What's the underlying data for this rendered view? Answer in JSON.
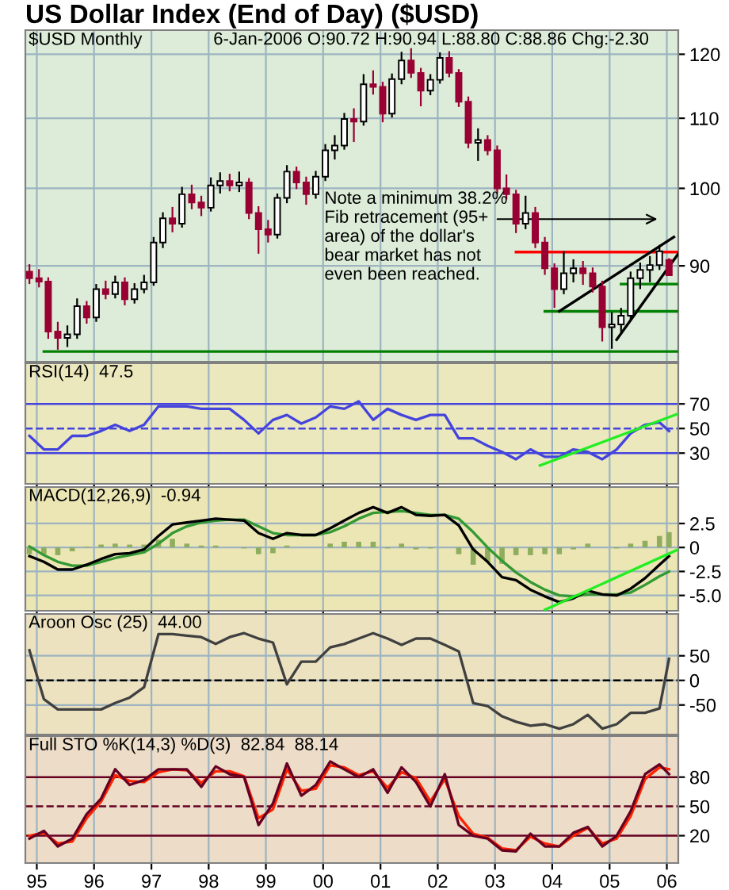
{
  "chart_data": [
    {
      "type": "candlestick",
      "title": "US Dollar Index (End of Day) ($USD)",
      "subtitle": "$USD Monthly",
      "annotations": [
        "6-Jan-2006 O:90.72 H:90.94 L:88.80 C:88.86 Chg:-2.30",
        "Note a minimum 38.2%\nFib retracement (95+\narea) of the dollar's\nbear market has not\neven been reached."
      ],
      "log": true,
      "grid": true,
      "tick_labels": "y",
      "xlim": [
        "1994-10-20",
        "2006-03-15"
      ],
      "xticks": [
        {
          "value": "1995-01-01",
          "label": null
        },
        {
          "value": "1996-01-01",
          "label": null
        },
        {
          "value": "1997-01-01",
          "label": null
        },
        {
          "value": "1998-01-01",
          "label": null
        },
        {
          "value": "1999-01-01",
          "label": null
        },
        {
          "value": "2000-01-01",
          "label": null
        },
        {
          "value": "2001-01-01",
          "label": null
        },
        {
          "value": "2002-01-01",
          "label": null
        },
        {
          "value": "2003-01-01",
          "label": null
        },
        {
          "value": "2004-01-01",
          "label": null
        },
        {
          "value": "2005-01-01",
          "label": null
        },
        {
          "value": "2006-01-01",
          "label": null
        }
      ],
      "ylim": [
        79,
        124
      ],
      "yticks": [
        90,
        100,
        110,
        120
      ],
      "x": [
        "1994-11",
        "1995-01",
        "1995-03",
        "1995-05",
        "1995-07",
        "1995-09",
        "1995-11",
        "1996-01",
        "1996-03",
        "1996-05",
        "1996-07",
        "1996-09",
        "1996-11",
        "1997-01",
        "1997-03",
        "1997-05",
        "1997-07",
        "1997-09",
        "1997-11",
        "1998-01",
        "1998-03",
        "1998-05",
        "1998-07",
        "1998-09",
        "1998-11",
        "1999-01",
        "1999-03",
        "1999-05",
        "1999-07",
        "1999-09",
        "1999-11",
        "2000-01",
        "2000-03",
        "2000-05",
        "2000-07",
        "2000-09",
        "2000-11",
        "2001-01",
        "2001-03",
        "2001-05",
        "2001-07",
        "2001-09",
        "2001-11",
        "2002-01",
        "2002-03",
        "2002-05",
        "2002-07",
        "2002-09",
        "2002-11",
        "2003-01",
        "2003-03",
        "2003-05",
        "2003-07",
        "2003-09",
        "2003-11",
        "2004-01",
        "2004-03",
        "2004-05",
        "2004-07",
        "2004-09",
        "2004-11",
        "2005-01",
        "2005-03",
        "2005-05",
        "2005-07",
        "2005-09",
        "2005-11",
        "2006-01"
      ],
      "ohlc": [
        [
          89.3,
          90.2,
          87.8,
          88.5
        ],
        [
          88.5,
          89.6,
          87.4,
          88.1
        ],
        [
          88.1,
          88.6,
          81.5,
          82.3
        ],
        [
          82.3,
          83.4,
          80.3,
          81.6
        ],
        [
          81.6,
          83.0,
          80.6,
          82.0
        ],
        [
          82.0,
          86.1,
          81.5,
          85.2
        ],
        [
          85.2,
          85.8,
          83.2,
          83.9
        ],
        [
          83.9,
          87.8,
          83.4,
          87.2
        ],
        [
          87.2,
          88.2,
          86.0,
          86.6
        ],
        [
          86.6,
          88.8,
          86.1,
          88.0
        ],
        [
          88.0,
          88.6,
          85.3,
          86.0
        ],
        [
          86.0,
          87.9,
          85.5,
          87.2
        ],
        [
          87.2,
          88.9,
          86.7,
          88.0
        ],
        [
          88.0,
          93.6,
          87.6,
          92.9
        ],
        [
          92.9,
          96.8,
          92.2,
          96.0
        ],
        [
          96.0,
          97.5,
          94.2,
          95.3
        ],
        [
          95.3,
          100.2,
          94.8,
          99.2
        ],
        [
          99.2,
          100.5,
          97.2,
          98.1
        ],
        [
          98.1,
          99.0,
          96.3,
          97.4
        ],
        [
          97.4,
          101.5,
          96.9,
          100.4
        ],
        [
          100.4,
          102.2,
          99.3,
          101.0
        ],
        [
          101.0,
          102.0,
          99.6,
          100.4
        ],
        [
          100.4,
          102.3,
          99.5,
          100.8
        ],
        [
          100.8,
          101.4,
          95.9,
          96.7
        ],
        [
          96.7,
          97.6,
          91.5,
          94.6
        ],
        [
          94.6,
          95.8,
          92.9,
          93.9
        ],
        [
          93.9,
          99.3,
          93.4,
          98.7
        ],
        [
          98.7,
          103.2,
          98.0,
          102.3
        ],
        [
          102.3,
          103.0,
          99.9,
          100.8
        ],
        [
          100.8,
          101.6,
          97.8,
          99.2
        ],
        [
          99.2,
          102.4,
          98.6,
          101.6
        ],
        [
          101.6,
          106.2,
          101.0,
          105.3
        ],
        [
          105.3,
          107.5,
          104.0,
          106.0
        ],
        [
          106.0,
          110.8,
          105.4,
          109.9
        ],
        [
          109.9,
          111.5,
          106.5,
          109.5
        ],
        [
          109.5,
          116.8,
          108.9,
          115.2
        ],
        [
          115.2,
          117.4,
          113.6,
          114.8
        ],
        [
          114.8,
          115.6,
          109.4,
          110.7
        ],
        [
          110.7,
          116.9,
          110.1,
          116.0
        ],
        [
          116.0,
          120.4,
          115.2,
          119.0
        ],
        [
          119.0,
          121.0,
          116.2,
          117.0
        ],
        [
          117.0,
          117.8,
          111.8,
          114.2
        ],
        [
          114.2,
          116.8,
          113.5,
          115.9
        ],
        [
          115.9,
          120.3,
          115.3,
          119.4
        ],
        [
          119.4,
          120.5,
          116.3,
          117.0
        ],
        [
          117.0,
          117.6,
          111.7,
          112.5
        ],
        [
          112.5,
          113.3,
          105.6,
          106.4
        ],
        [
          106.4,
          108.5,
          103.8,
          106.8
        ],
        [
          106.8,
          107.5,
          104.6,
          105.3
        ],
        [
          105.3,
          106.0,
          99.3,
          100.0
        ],
        [
          100.0,
          101.9,
          98.5,
          99.2
        ],
        [
          99.2,
          99.8,
          94.1,
          95.3
        ],
        [
          95.3,
          99.0,
          94.6,
          96.7
        ],
        [
          96.7,
          97.5,
          92.2,
          92.9
        ],
        [
          92.9,
          93.6,
          88.9,
          89.7
        ],
        [
          89.7,
          90.3,
          85.0,
          87.2
        ],
        [
          87.2,
          91.8,
          86.6,
          89.1
        ],
        [
          89.1,
          90.8,
          88.0,
          89.7
        ],
        [
          89.7,
          90.6,
          87.7,
          89.1
        ],
        [
          89.1,
          89.8,
          86.8,
          87.5
        ],
        [
          87.5,
          88.2,
          81.2,
          82.8
        ],
        [
          82.8,
          84.5,
          80.4,
          83.1
        ],
        [
          83.1,
          85.0,
          82.2,
          84.1
        ],
        [
          84.1,
          89.3,
          83.6,
          88.5
        ],
        [
          88.5,
          90.4,
          87.2,
          89.5
        ],
        [
          89.5,
          91.2,
          88.0,
          90.1
        ],
        [
          90.1,
          92.6,
          89.5,
          91.8
        ],
        [
          90.72,
          90.94,
          88.8,
          88.86
        ]
      ],
      "series": [
        {
          "type": "line",
          "color": "#008000",
          "x": [
            "1995-02",
            "2006-03"
          ],
          "values": [
            80.1,
            80.1
          ]
        },
        {
          "type": "line",
          "color": "#008000",
          "x": [
            "2003-11",
            "2006-03"
          ],
          "values": [
            84.6,
            84.6
          ]
        },
        {
          "type": "line",
          "color": "#008000",
          "x": [
            "2005-03",
            "2006-03"
          ],
          "values": [
            87.8,
            87.8
          ]
        },
        {
          "type": "line",
          "color": "#ff0000",
          "x": [
            "2003-05",
            "2006-03"
          ],
          "values": [
            91.7,
            91.7
          ]
        },
        {
          "type": "line",
          "color": "#000000",
          "x": [
            "2004-02",
            "2006-02"
          ],
          "values": [
            84.6,
            93.6
          ]
        },
        {
          "type": "line",
          "color": "#000000",
          "x": [
            "2005-02",
            "2006-03"
          ],
          "values": [
            81.4,
            91.5
          ]
        }
      ]
    },
    {
      "type": "line",
      "title": "RSI(14)  47.5",
      "grid": "x",
      "tick_labels": "y",
      "xlim": [
        "1994-10-20",
        "2006-03-15"
      ],
      "xticks": [
        {
          "value": "1995-01-01",
          "label": null
        },
        {
          "value": "1996-01-01",
          "label": null
        },
        {
          "value": "1997-01-01",
          "label": null
        },
        {
          "value": "1998-01-01",
          "label": null
        },
        {
          "value": "1999-01-01",
          "label": null
        },
        {
          "value": "2000-01-01",
          "label": null
        },
        {
          "value": "2001-01-01",
          "label": null
        },
        {
          "value": "2002-01-01",
          "label": null
        },
        {
          "value": "2003-01-01",
          "label": null
        },
        {
          "value": "2004-01-01",
          "label": null
        },
        {
          "value": "2005-01-01",
          "label": null
        },
        {
          "value": "2006-01-01",
          "label": null
        }
      ],
      "ylim": [
        5,
        103
      ],
      "yticks": [
        30,
        50,
        70
      ],
      "x": [
        "1994-11",
        "1995-02",
        "1995-05",
        "1995-08",
        "1995-11",
        "1996-02",
        "1996-05",
        "1996-08",
        "1996-11",
        "1997-02",
        "1997-05",
        "1997-08",
        "1997-11",
        "1998-02",
        "1998-05",
        "1998-08",
        "1998-11",
        "1999-02",
        "1999-05",
        "1999-08",
        "1999-11",
        "2000-02",
        "2000-05",
        "2000-08",
        "2000-11",
        "2001-02",
        "2001-05",
        "2001-08",
        "2001-11",
        "2002-02",
        "2002-05",
        "2002-08",
        "2002-11",
        "2003-02",
        "2003-05",
        "2003-08",
        "2003-11",
        "2004-02",
        "2004-05",
        "2004-08",
        "2004-11",
        "2005-02",
        "2005-05",
        "2005-08",
        "2005-11",
        "2006-01"
      ],
      "series": [
        {
          "color": "#4444dd",
          "values": [
            44,
            33,
            33,
            44,
            44,
            48,
            53,
            48,
            53,
            68,
            68,
            68,
            66,
            66,
            66,
            57,
            46,
            57,
            61,
            54,
            59,
            68,
            66,
            72,
            57,
            66,
            61,
            57,
            61,
            61,
            42,
            42,
            36,
            31,
            25,
            33,
            27,
            27,
            33,
            31,
            25,
            33,
            46,
            53,
            55,
            48
          ]
        },
        {
          "color": "#22ee22",
          "x": [
            "2003-10",
            "2006-03"
          ],
          "values": [
            20,
            62
          ]
        }
      ],
      "ref_lines": [
        {
          "axis": "y",
          "value": 70,
          "color": "#4444dd"
        },
        {
          "axis": "y",
          "value": 50,
          "color": "#4444dd",
          "line_style": "dashed"
        },
        {
          "axis": "y",
          "value": 30,
          "color": "#4444dd"
        }
      ]
    },
    {
      "type": "line",
      "title": "MACD(12,26,9)  -0.94",
      "grid": true,
      "tick_labels": "y",
      "xlim": [
        "1994-10-20",
        "2006-03-15"
      ],
      "xticks": [
        {
          "value": "1995-01-01",
          "label": null
        },
        {
          "value": "1996-01-01",
          "label": null
        },
        {
          "value": "1997-01-01",
          "label": null
        },
        {
          "value": "1998-01-01",
          "label": null
        },
        {
          "value": "1999-01-01",
          "label": null
        },
        {
          "value": "2000-01-01",
          "label": null
        },
        {
          "value": "2001-01-01",
          "label": null
        },
        {
          "value": "2002-01-01",
          "label": null
        },
        {
          "value": "2003-01-01",
          "label": null
        },
        {
          "value": "2004-01-01",
          "label": null
        },
        {
          "value": "2005-01-01",
          "label": null
        },
        {
          "value": "2006-01-01",
          "label": null
        }
      ],
      "ylim": [
        -6.6,
        6.3
      ],
      "yticks": [
        2.5,
        0,
        -2.5,
        {
          "value": -5,
          "label": "-5.0"
        }
      ],
      "x": [
        "1994-11",
        "1995-02",
        "1995-05",
        "1995-08",
        "1995-11",
        "1996-02",
        "1996-05",
        "1996-08",
        "1996-11",
        "1997-02",
        "1997-05",
        "1997-08",
        "1997-11",
        "1998-02",
        "1998-05",
        "1998-08",
        "1998-11",
        "1999-02",
        "1999-05",
        "1999-08",
        "1999-11",
        "2000-02",
        "2000-05",
        "2000-08",
        "2000-11",
        "2001-02",
        "2001-05",
        "2001-08",
        "2001-11",
        "2002-02",
        "2002-05",
        "2002-08",
        "2002-11",
        "2003-02",
        "2003-05",
        "2003-08",
        "2003-11",
        "2004-02",
        "2004-05",
        "2004-08",
        "2004-11",
        "2005-02",
        "2005-05",
        "2005-08",
        "2005-11",
        "2006-01"
      ],
      "series": [
        {
          "type": "bar",
          "color": "#8fad5f",
          "values": [
            -0.7,
            -0.7,
            -0.8,
            -0.4,
            0.1,
            0.3,
            0.4,
            0.3,
            0.3,
            0.8,
            0.9,
            0.4,
            0.2,
            0.2,
            0,
            -0.1,
            -0.7,
            -0.6,
            0.2,
            0,
            0,
            0.4,
            0.6,
            0.6,
            0.6,
            -0.1,
            0.4,
            -0.2,
            -0.1,
            0,
            -0.7,
            -1.8,
            -1.5,
            -1.7,
            -0.8,
            -0.8,
            -0.7,
            -0.7,
            -0.2,
            0.4,
            0,
            -0.1,
            0.4,
            0.7,
            1.2,
            1.6
          ]
        },
        {
          "color": "#339933",
          "values": [
            0.1,
            -0.8,
            -1.5,
            -1.9,
            -1.9,
            -1.5,
            -1.1,
            -0.8,
            -0.5,
            0.4,
            1.5,
            2.2,
            2.6,
            2.8,
            2.9,
            2.9,
            2.2,
            1.5,
            1.3,
            1.3,
            1.3,
            1.6,
            2.2,
            3.0,
            3.6,
            3.7,
            3.8,
            3.6,
            3.4,
            3.4,
            3.0,
            1.6,
            0,
            -1.4,
            -2.6,
            -3.6,
            -4.4,
            -5.0,
            -5.1,
            -4.9,
            -4.9,
            -4.9,
            -4.7,
            -3.9,
            -3.0,
            -2.5
          ]
        },
        {
          "color": "#000000",
          "values": [
            -0.9,
            -1.5,
            -2.3,
            -2.3,
            -1.8,
            -1.2,
            -0.7,
            -0.6,
            -0.2,
            1.2,
            2.4,
            2.6,
            2.8,
            3.0,
            2.9,
            2.8,
            1.5,
            0.9,
            1.5,
            1.3,
            1.3,
            2.0,
            2.8,
            3.6,
            4.2,
            3.6,
            4.2,
            3.4,
            3.3,
            3.4,
            2.3,
            -0.2,
            -1.5,
            -3.1,
            -3.4,
            -4.4,
            -5.1,
            -5.7,
            -5.3,
            -4.5,
            -4.9,
            -5.0,
            -4.3,
            -3.2,
            -1.8,
            -0.9
          ]
        },
        {
          "color": "#22ee22",
          "x": [
            "2003-11",
            "2006-03"
          ],
          "values": [
            -6.5,
            -0.2
          ]
        }
      ]
    },
    {
      "type": "line",
      "title": "Aroon Osc (25)  44.00",
      "grid": true,
      "tick_labels": "y",
      "xlim": [
        "1994-10-20",
        "2006-03-15"
      ],
      "xticks": [
        {
          "value": "1995-01-01",
          "label": null
        },
        {
          "value": "1996-01-01",
          "label": null
        },
        {
          "value": "1997-01-01",
          "label": null
        },
        {
          "value": "1998-01-01",
          "label": null
        },
        {
          "value": "1999-01-01",
          "label": null
        },
        {
          "value": "2000-01-01",
          "label": null
        },
        {
          "value": "2001-01-01",
          "label": null
        },
        {
          "value": "2002-01-01",
          "label": null
        },
        {
          "value": "2003-01-01",
          "label": null
        },
        {
          "value": "2004-01-01",
          "label": null
        },
        {
          "value": "2005-01-01",
          "label": null
        },
        {
          "value": "2006-01-01",
          "label": null
        }
      ],
      "ylim": [
        -110,
        135
      ],
      "yticks": [
        50,
        0,
        -50
      ],
      "x": [
        "1994-11",
        "1995-02",
        "1995-05",
        "1995-08",
        "1995-11",
        "1996-02",
        "1996-05",
        "1996-08",
        "1996-11",
        "1997-02",
        "1997-05",
        "1997-08",
        "1997-11",
        "1998-02",
        "1998-05",
        "1998-08",
        "1998-11",
        "1999-02",
        "1999-05",
        "1999-08",
        "1999-11",
        "2000-02",
        "2000-05",
        "2000-08",
        "2000-11",
        "2001-02",
        "2001-05",
        "2001-08",
        "2001-11",
        "2002-02",
        "2002-05",
        "2002-08",
        "2002-11",
        "2003-02",
        "2003-05",
        "2003-08",
        "2003-11",
        "2004-02",
        "2004-05",
        "2004-08",
        "2004-11",
        "2005-02",
        "2005-05",
        "2005-08",
        "2005-11",
        "2006-01"
      ],
      "series": [
        {
          "color": "#404040",
          "values": [
            61,
            -38,
            -59,
            -59,
            -59,
            -59,
            -46,
            -35,
            -14,
            94,
            94,
            91,
            88,
            74,
            88,
            96,
            85,
            77,
            -8,
            38,
            38,
            67,
            74,
            85,
            96,
            85,
            72,
            85,
            85,
            72,
            59,
            -46,
            -52,
            -73,
            -84,
            -92,
            -89,
            -98,
            -89,
            -70,
            -98,
            -89,
            -66,
            -66,
            -57,
            44
          ]
        }
      ],
      "ref_lines": [
        {
          "axis": "y",
          "value": 0,
          "color": "#000000",
          "line_style": "dashed"
        }
      ]
    },
    {
      "type": "line",
      "title": "Full STO %K(14,3) %D(3)  82.84  88.14",
      "grid": "x",
      "xlim": [
        "1994-10-20",
        "2006-03-15"
      ],
      "xticks": [
        {
          "value": "1995-01-01",
          "label": "95"
        },
        {
          "value": "1996-01-01",
          "label": "96"
        },
        {
          "value": "1997-01-01",
          "label": "97"
        },
        {
          "value": "1998-01-01",
          "label": "98"
        },
        {
          "value": "1999-01-01",
          "label": "99"
        },
        {
          "value": "2000-01-01",
          "label": "00"
        },
        {
          "value": "2001-01-01",
          "label": "01"
        },
        {
          "value": "2002-01-01",
          "label": "02"
        },
        {
          "value": "2003-01-01",
          "label": "03"
        },
        {
          "value": "2004-01-01",
          "label": "04"
        },
        {
          "value": "2005-01-01",
          "label": "05"
        },
        {
          "value": "2006-01-01",
          "label": "06"
        }
      ],
      "ylim": [
        -8,
        122
      ],
      "yticks": [
        80,
        50,
        20
      ],
      "x": [
        "1994-11",
        "1995-02",
        "1995-05",
        "1995-08",
        "1995-11",
        "1996-02",
        "1996-05",
        "1996-08",
        "1996-11",
        "1997-02",
        "1997-05",
        "1997-08",
        "1997-11",
        "1998-02",
        "1998-05",
        "1998-08",
        "1998-11",
        "1999-02",
        "1999-05",
        "1999-08",
        "1999-11",
        "2000-02",
        "2000-05",
        "2000-08",
        "2000-11",
        "2001-02",
        "2001-05",
        "2001-08",
        "2001-11",
        "2002-02",
        "2002-05",
        "2002-08",
        "2002-11",
        "2003-02",
        "2003-05",
        "2003-08",
        "2003-11",
        "2004-02",
        "2004-05",
        "2004-08",
        "2004-11",
        "2005-02",
        "2005-05",
        "2005-08",
        "2005-11",
        "2006-01"
      ],
      "series": [
        {
          "color": "#ff2200",
          "values": [
            20,
            23,
            12,
            14,
            38,
            55,
            82,
            76,
            75,
            85,
            88,
            87,
            74,
            86,
            86,
            81,
            38,
            47,
            88,
            66,
            68,
            92,
            90,
            82,
            86,
            69,
            85,
            79,
            55,
            78,
            40,
            22,
            18,
            7,
            5,
            19,
            12,
            9,
            20,
            28,
            12,
            17,
            40,
            78,
            90,
            88
          ]
        },
        {
          "color": "#660022",
          "values": [
            17,
            25,
            9,
            17,
            42,
            58,
            88,
            72,
            77,
            88,
            88,
            88,
            70,
            91,
            83,
            80,
            31,
            53,
            94,
            61,
            72,
            96,
            88,
            80,
            88,
            64,
            90,
            75,
            50,
            83,
            31,
            20,
            17,
            5,
            4,
            22,
            9,
            9,
            23,
            29,
            9,
            20,
            45,
            83,
            93,
            83
          ]
        }
      ],
      "ref_lines": [
        {
          "axis": "y",
          "value": 80,
          "color": "#660022"
        },
        {
          "axis": "y",
          "value": 50,
          "color": "#660022",
          "line_style": "dashed"
        },
        {
          "axis": "y",
          "value": 20,
          "color": "#660022"
        }
      ]
    }
  ]
}
